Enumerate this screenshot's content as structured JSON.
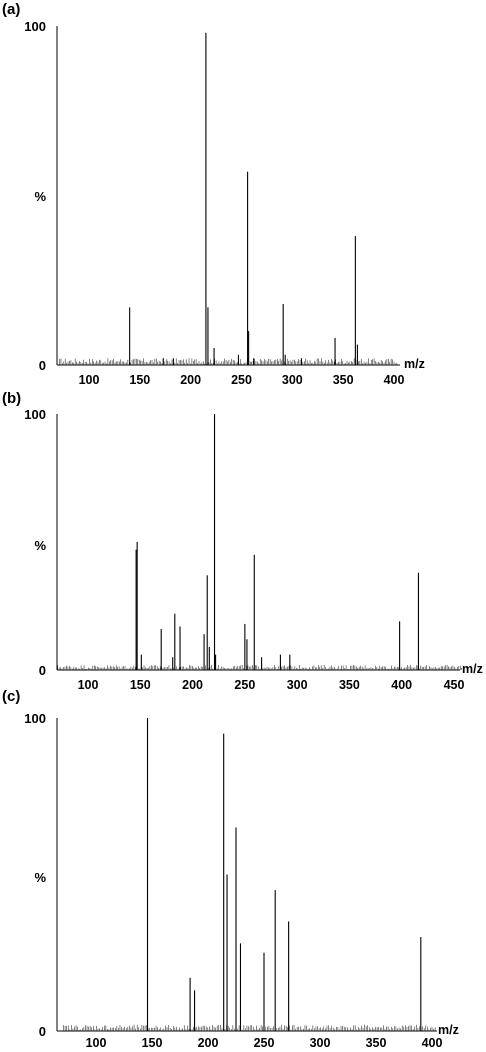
{
  "chart_data": [
    {
      "panel": "(a)",
      "type": "bar",
      "xlabel": "m/z",
      "ylabel": "%",
      "y_ticks": [
        "0",
        "%",
        "100"
      ],
      "x_ticks": [
        100,
        150,
        200,
        250,
        300,
        350,
        400
      ],
      "xlim": [
        70,
        405
      ],
      "ylim": [
        0,
        100
      ],
      "peaks": [
        {
          "mz": 140,
          "intensity": 17
        },
        {
          "mz": 173,
          "intensity": 2
        },
        {
          "mz": 183,
          "intensity": 2
        },
        {
          "mz": 215,
          "intensity": 98
        },
        {
          "mz": 217,
          "intensity": 17
        },
        {
          "mz": 223,
          "intensity": 5
        },
        {
          "mz": 247,
          "intensity": 3
        },
        {
          "mz": 256,
          "intensity": 57
        },
        {
          "mz": 257,
          "intensity": 10
        },
        {
          "mz": 262,
          "intensity": 2
        },
        {
          "mz": 291,
          "intensity": 18
        },
        {
          "mz": 293,
          "intensity": 3
        },
        {
          "mz": 309,
          "intensity": 2
        },
        {
          "mz": 342,
          "intensity": 8
        },
        {
          "mz": 362,
          "intensity": 38
        },
        {
          "mz": 364,
          "intensity": 6
        }
      ]
    },
    {
      "panel": "(b)",
      "type": "bar",
      "xlabel": "m/z",
      "ylabel": "%",
      "y_ticks": [
        "0",
        "%",
        "100"
      ],
      "x_ticks": [
        100,
        150,
        200,
        250,
        300,
        350,
        400,
        450
      ],
      "xlim": [
        70,
        460
      ],
      "ylim": [
        0,
        100
      ],
      "peaks": [
        {
          "mz": 146,
          "intensity": 47
        },
        {
          "mz": 147,
          "intensity": 50
        },
        {
          "mz": 151,
          "intensity": 6
        },
        {
          "mz": 170,
          "intensity": 16
        },
        {
          "mz": 181,
          "intensity": 5
        },
        {
          "mz": 183,
          "intensity": 22
        },
        {
          "mz": 188,
          "intensity": 17
        },
        {
          "mz": 211,
          "intensity": 14
        },
        {
          "mz": 214,
          "intensity": 37
        },
        {
          "mz": 216,
          "intensity": 9
        },
        {
          "mz": 221,
          "intensity": 100
        },
        {
          "mz": 222,
          "intensity": 6
        },
        {
          "mz": 250,
          "intensity": 18
        },
        {
          "mz": 252,
          "intensity": 12
        },
        {
          "mz": 259,
          "intensity": 45
        },
        {
          "mz": 266,
          "intensity": 5
        },
        {
          "mz": 284,
          "intensity": 6
        },
        {
          "mz": 293,
          "intensity": 6
        },
        {
          "mz": 398,
          "intensity": 19
        },
        {
          "mz": 416,
          "intensity": 38
        }
      ]
    },
    {
      "panel": "(c)",
      "type": "bar",
      "xlabel": "m/z",
      "ylabel": "%",
      "y_ticks": [
        "0",
        "%",
        "100"
      ],
      "x_ticks": [
        100,
        150,
        200,
        250,
        300,
        350,
        400
      ],
      "xlim": [
        70,
        405
      ],
      "ylim": [
        0,
        100
      ],
      "peaks": [
        {
          "mz": 146,
          "intensity": 100
        },
        {
          "mz": 184,
          "intensity": 17
        },
        {
          "mz": 188,
          "intensity": 13
        },
        {
          "mz": 214,
          "intensity": 95
        },
        {
          "mz": 217,
          "intensity": 50
        },
        {
          "mz": 225,
          "intensity": 65
        },
        {
          "mz": 229,
          "intensity": 28
        },
        {
          "mz": 250,
          "intensity": 25
        },
        {
          "mz": 260,
          "intensity": 45
        },
        {
          "mz": 272,
          "intensity": 35
        },
        {
          "mz": 390,
          "intensity": 30
        }
      ]
    }
  ]
}
